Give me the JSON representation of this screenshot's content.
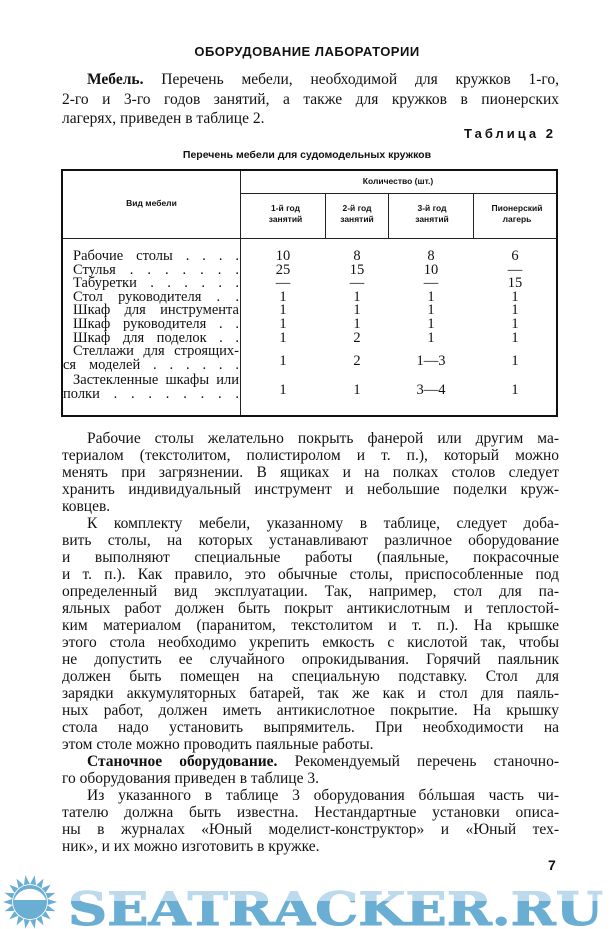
{
  "title": "ОБОРУДОВАНИЕ ЛАБОРАТОРИИ",
  "intro": {
    "bold": "Мебель.",
    "lines": [
      " Перечень мебели, необходимой для кружков 1-го,",
      "2-го и 3-го годов занятий, а также для кружков в пионерских",
      "лагерях, приведен в таблице 2."
    ]
  },
  "table_number": "Таблица 2",
  "table": {
    "caption": "Перечень мебели для судомодельных кружков",
    "col_kind": "Вид мебели",
    "group_header": "Количество (шт.)",
    "columns": [
      "1-й год занятий",
      "2-й год занятий",
      "3-й год занятий",
      "Пионерский лагерь"
    ],
    "rows": [
      {
        "name": [
          "Рабочие столы . . . ."
        ],
        "values": [
          "10",
          "8",
          "8",
          "6"
        ]
      },
      {
        "name": [
          "Стулья . . . . . . ."
        ],
        "values": [
          "25",
          "15",
          "10",
          "—"
        ]
      },
      {
        "name": [
          "Табуретки . . . . . ."
        ],
        "values": [
          "—",
          "—",
          "—",
          "15"
        ]
      },
      {
        "name": [
          "Стол руководителя . ."
        ],
        "values": [
          "1",
          "1",
          "1",
          "1"
        ]
      },
      {
        "name": [
          "Шкаф для инструмента"
        ],
        "values": [
          "1",
          "1",
          "1",
          "1"
        ]
      },
      {
        "name": [
          "Шкаф руководителя . ."
        ],
        "values": [
          "1",
          "1",
          "1",
          "1"
        ]
      },
      {
        "name": [
          "Шкаф для поделок . ."
        ],
        "values": [
          "1",
          "2",
          "1",
          "1"
        ]
      },
      {
        "name": [
          "Стеллажи для строящих-",
          "ся моделей . . . . . ."
        ],
        "values": [
          "1",
          "2",
          "1—3",
          "1"
        ]
      },
      {
        "name": [
          "Застекленные шкафы или",
          "полки . . . . . . . ."
        ],
        "values": [
          "1",
          "1",
          "3—4",
          "1"
        ]
      }
    ]
  },
  "paragraphs": [
    {
      "lines": [
        "Рабочие столы желательно покрыть фанерой или другим ма-",
        "териалом (текстолитом, полистиролом и т. п.), который можно",
        "менять при загрязнении. В ящиках и на полках столов следует",
        "хранить индивидуальный инструмент и небольшие поделки круж-",
        "ковцев."
      ]
    },
    {
      "lines": [
        "К комплекту мебели, указанному в таблице, следует доба-",
        "вить столы, на которых устанавливают различное оборудование",
        "и выполняют специальные работы (паяльные, покрасочные",
        "и т. п.). Как правило, это обычные столы, приспособленные под",
        "определенный вид эксплуатации. Так, например, стол для па-",
        "яльных работ должен быть покрыт антикислотным и теплостой-",
        "ким материалом (паранитом, текстолитом и т. п.). На крышке",
        "этого стола необходимо укрепить емкость с кислотой так, чтобы",
        "не допустить ее случайного опрокидывания. Горячий паяльник",
        "должен быть помещен на специальную подставку. Стол для",
        "зарядки аккумуляторных батарей, так же как и стол для паяль-",
        "ных работ, должен иметь антикислотное покрытие. На крышку",
        "стола надо установить выпрямитель. При необходимости на",
        "этом столе можно проводить паяльные работы."
      ]
    },
    {
      "bold": "Станочное оборудование.",
      "lines": [
        " Рекомендуемый перечень станочно-",
        "го оборудования приведен в таблице 3."
      ]
    },
    {
      "lines": [
        "Из указанного в таблице 3 оборудования бóльшая часть чи-",
        "тателю должна быть известна. Нестандартные установки описа-",
        "ны в журналах «Юный моделист-конструктор» и «Юный тех-",
        "ник», и их можно изготовить в кружке."
      ]
    }
  ],
  "page_number": "7",
  "watermark": {
    "text": "SEATRACKER.RU",
    "color": "#6aaed3"
  }
}
